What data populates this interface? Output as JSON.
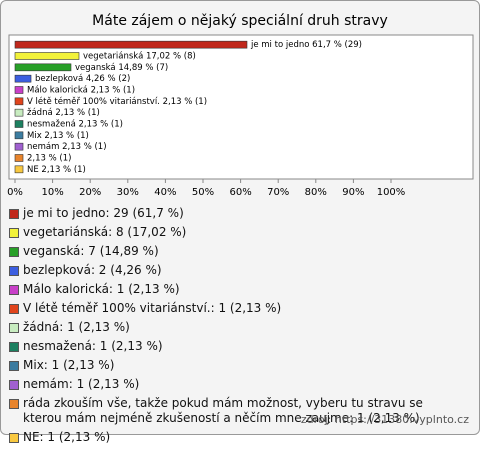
{
  "chart_data": {
    "type": "barh",
    "title": "Máte zájem o nějaký speciální druh stravy",
    "categories": [
      "je mi to jedno",
      "vegetariánská",
      "veganská",
      "bezlepková",
      "Málo kalorická",
      "V létě téměř 100% vitariánství.",
      "žádná",
      "nesmažená",
      "Mix",
      "nemám",
      "ráda zkouším vše, takže pokud mám možnost, vyberu tu stravu se kterou mám nejméně zkušeností a něčím mne zaujme",
      "NE"
    ],
    "values": [
      61.7,
      17.02,
      14.89,
      4.26,
      2.13,
      2.13,
      2.13,
      2.13,
      2.13,
      2.13,
      2.13,
      2.13
    ],
    "value_labels": [
      "je mi to jedno 61,7 % (29)",
      "vegetariánská 17,02 % (8)",
      "veganská 14,89 % (7)",
      "bezlepková 4,26 % (2)",
      "Málo kalorická 2,13 % (1)",
      "V létě téměř 100% vitariánství. 2,13 % (1)",
      "žádná 2,13 % (1)",
      "nesmažená 2,13 % (1)",
      "Mix 2,13 % (1)",
      "nemám 2,13 % (1)",
      "2,13 % (1)",
      "NE 2,13 % (1)"
    ],
    "legend_labels": [
      "je mi to jedno: 29 (61,7 %)",
      "vegetariánská: 8 (17,02 %)",
      "veganská: 7 (14,89 %)",
      "bezlepková: 2 (4,26 %)",
      "Málo kalorická: 1 (2,13 %)",
      "V létě téměř 100% vitariánství.: 1 (2,13 %)",
      "žádná: 1 (2,13 %)",
      "nesmažená: 1 (2,13 %)",
      "Mix: 1 (2,13 %)",
      "nemám: 1 (2,13 %)",
      "ráda zkouším vše, takže pokud mám možnost, vyberu tu stravu se kterou mám nejméně zkušeností a něčím mne zaujme: 1 (2,13 %)",
      "NE: 1 (2,13 %)"
    ],
    "colors": [
      "#c0281c",
      "#f2f23a",
      "#28a028",
      "#3c5ee0",
      "#c840c8",
      "#e0441c",
      "#c8ecc0",
      "#1c8060",
      "#3c7ca0",
      "#a060d0",
      "#e8842c",
      "#f8c840"
    ],
    "xlim": [
      0,
      100
    ],
    "xticks": [
      {
        "value": 0,
        "label": "0%"
      },
      {
        "value": 10,
        "label": "10%"
      },
      {
        "value": 20,
        "label": "20%"
      },
      {
        "value": 30,
        "label": "30%"
      },
      {
        "value": 40,
        "label": "40%"
      },
      {
        "value": 50,
        "label": "50%"
      },
      {
        "value": 60,
        "label": "60%"
      },
      {
        "value": 70,
        "label": "70%"
      },
      {
        "value": 80,
        "label": "80%"
      },
      {
        "value": 90,
        "label": "90%"
      },
      {
        "value": 100,
        "label": "100%"
      }
    ],
    "grid": false,
    "source": "zdroj: https://31380.vyplnto.cz"
  }
}
